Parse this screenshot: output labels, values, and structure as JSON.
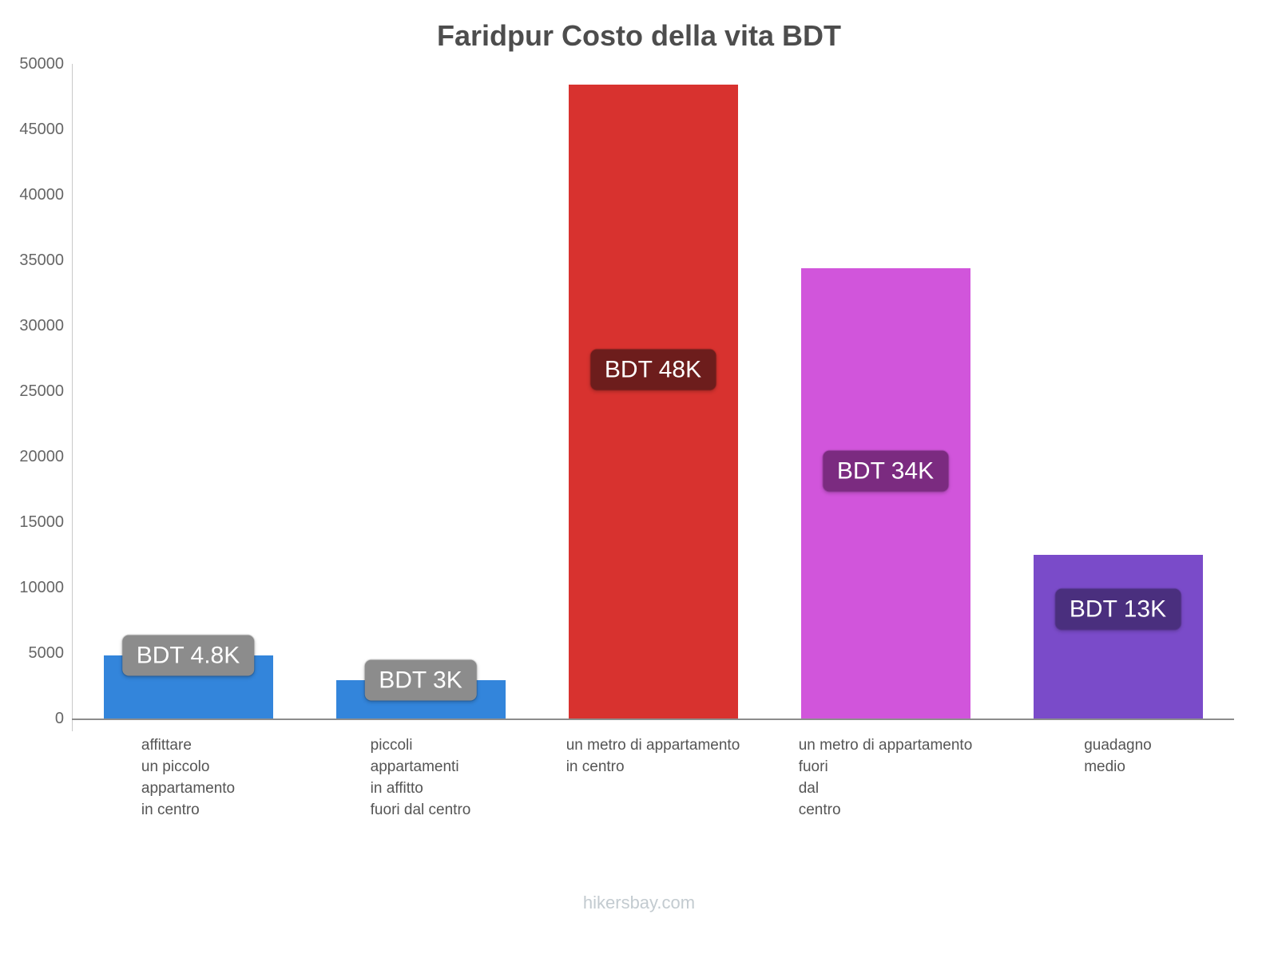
{
  "title": "Faridpur Costo della vita BDT",
  "footer": "hikersbay.com",
  "chart_data": {
    "type": "bar",
    "title": "Faridpur Costo della vita BDT",
    "ylim": [
      0,
      50000
    ],
    "ytick_step": 5000,
    "grid": false,
    "legend": false,
    "categories": [
      "affittare un piccolo appartamento in centro",
      "piccoli appartamenti in affitto fuori dal centro",
      "un metro di appartamento in centro",
      "un metro di appartamento fuori dal centro",
      "guadagno medio"
    ],
    "category_lines": [
      [
        "affittare",
        "un piccolo",
        "appartamento",
        "in centro"
      ],
      [
        "piccoli",
        "appartamenti",
        "in affitto",
        "fuori dal centro"
      ],
      [
        "un metro di appartamento",
        "in centro"
      ],
      [
        "un metro di appartamento",
        "fuori",
        "dal",
        "centro"
      ],
      [
        "guadagno",
        "medio"
      ]
    ],
    "values": [
      4800,
      2900,
      48400,
      34400,
      12500
    ],
    "value_labels": [
      "BDT 4.8K",
      "BDT 3K",
      "BDT 48K",
      "BDT 34K",
      "BDT 13K"
    ],
    "bar_colors": [
      "#3385db",
      "#3385db",
      "#d8322f",
      "#d155db",
      "#7a4bc9"
    ],
    "value_label_colors": [
      "#8c8c8c",
      "#8c8c8c",
      "#6d1d1c",
      "#7b2b80",
      "#4a2f7e"
    ]
  }
}
